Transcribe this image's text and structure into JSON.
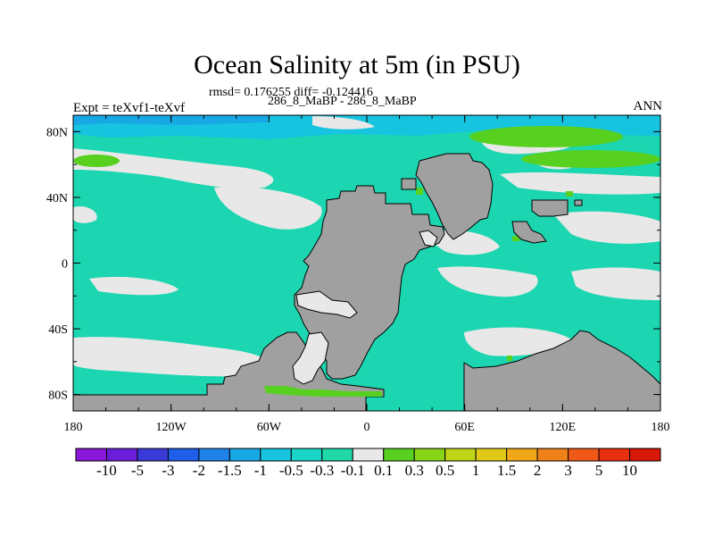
{
  "title": "Ocean Salinity at 5m (in PSU)",
  "stats_line": "rmsd= 0.176255 diff= -0.124416",
  "subtitle": "286_8_MaBP - 286_8_MaBP",
  "experiment_label": "Expt = teXvf1-teXvf",
  "period_label": "ANN",
  "x_ticks": [
    "180",
    "120W",
    "60W",
    "0",
    "60E",
    "120E",
    "180"
  ],
  "y_ticks": [
    "80N",
    "40N",
    "0",
    "40S",
    "80S"
  ],
  "colorbar": {
    "labels": [
      "-10",
      "-5",
      "-3",
      "-2",
      "-1.5",
      "-1",
      "-0.5",
      "-0.3",
      "-0.1",
      "0.1",
      "0.3",
      "0.5",
      "1",
      "1.5",
      "2",
      "3",
      "5",
      "10"
    ],
    "colors": [
      "#8a18d8",
      "#6a1ed8",
      "#3a3ad8",
      "#1e5ee8",
      "#1f82e8",
      "#19a8e6",
      "#16c4e0",
      "#1bd6c8",
      "#20d8a8",
      "#e8e8e8",
      "#58d020",
      "#88d418",
      "#c0d418",
      "#e0c818",
      "#f0a818",
      "#f08018",
      "#f05818",
      "#e83010",
      "#d81808"
    ]
  },
  "colors": {
    "land": "#a0a0a0",
    "ocean_minus": "#1bd6b0",
    "ocean_minus_strong": "#16c4e0",
    "ocean_neutral": "#e8e8e8",
    "ocean_plus": "#58d020"
  }
}
